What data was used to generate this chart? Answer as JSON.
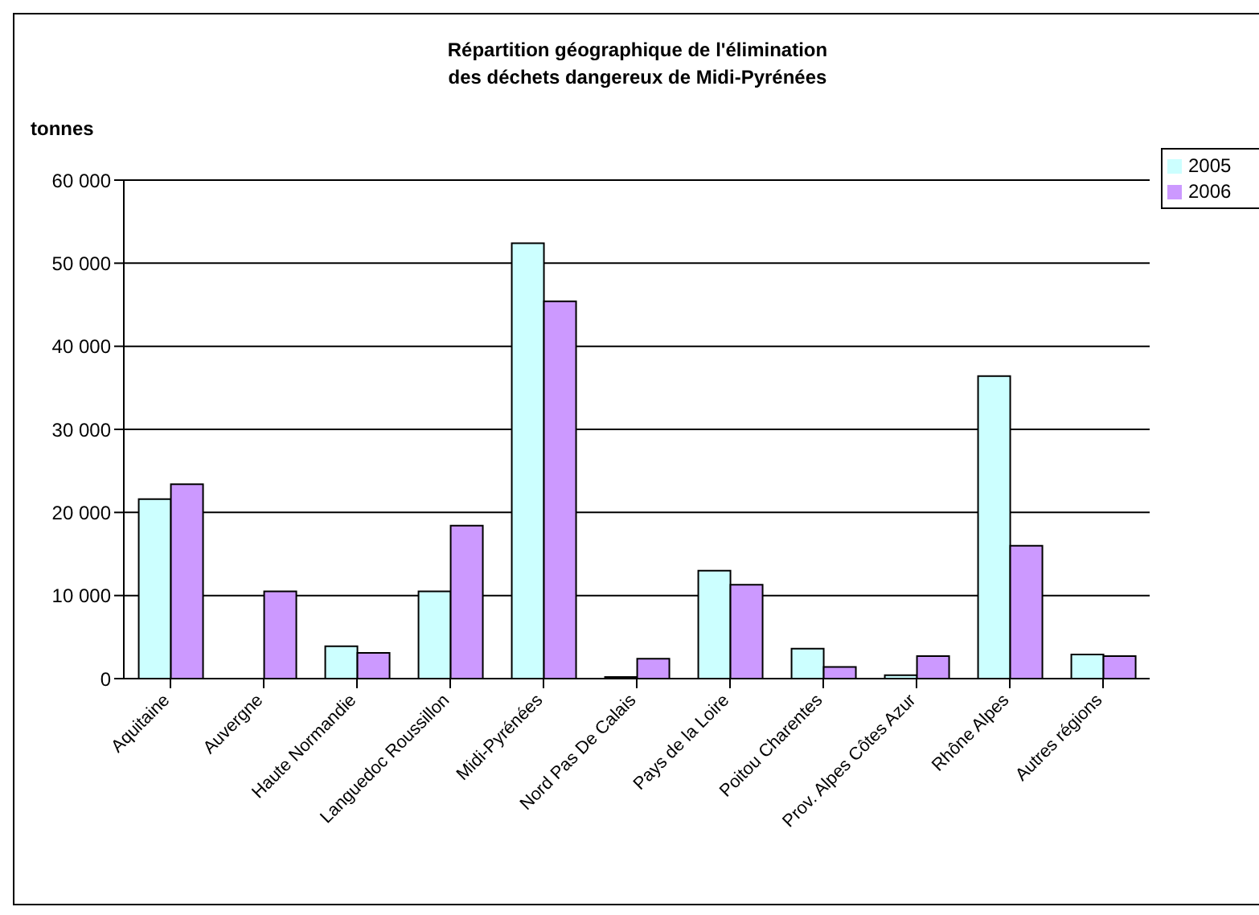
{
  "chart_data": {
    "type": "bar",
    "title": "Répartition géographique de l'élimination\ndes déchets dangereux de Midi-Pyrénées",
    "ylabel": "tonnes",
    "categories": [
      "Aquitaine",
      "Auvergne",
      "Haute Normandie",
      "Languedoc Roussillon",
      "Midi-Pyrénées",
      "Nord Pas De Calais",
      "Pays de la Loire",
      "Poitou Charentes",
      "Prov. Alpes Côtes Azur",
      "Rhône Alpes",
      "Autres régions"
    ],
    "series": [
      {
        "name": "2005",
        "color": "#ccffff",
        "values": [
          21600,
          0,
          3900,
          10500,
          52400,
          200,
          13000,
          3600,
          400,
          36400,
          2900
        ]
      },
      {
        "name": "2006",
        "color": "#cc99ff",
        "values": [
          23400,
          10500,
          3100,
          18400,
          45400,
          2400,
          11300,
          1400,
          2700,
          16000,
          2700
        ]
      }
    ],
    "ylim": [
      0,
      60000
    ],
    "yticks": [
      {
        "value": 0,
        "label": "0"
      },
      {
        "value": 10000,
        "label": "10 000"
      },
      {
        "value": 20000,
        "label": "20 000"
      },
      {
        "value": 30000,
        "label": "30 000"
      },
      {
        "value": 40000,
        "label": "40 000"
      },
      {
        "value": 50000,
        "label": "50 000"
      },
      {
        "value": 60000,
        "label": "60 000"
      }
    ],
    "grid": "y",
    "legend": "top right"
  }
}
